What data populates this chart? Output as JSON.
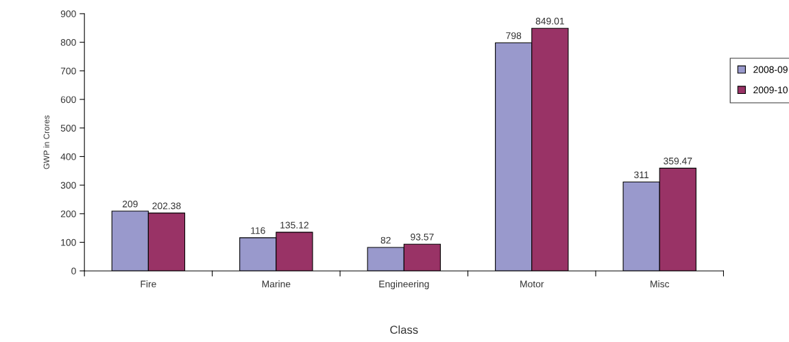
{
  "chart_data": {
    "type": "bar",
    "xlabel": "Class",
    "ylabel": "GWP in Crores",
    "categories": [
      "Fire",
      "Marine",
      "Engineering",
      "Motor",
      "Misc"
    ],
    "series": [
      {
        "name": "2008-09",
        "color": "#9999cc",
        "values": [
          209,
          116,
          82,
          798,
          311
        ]
      },
      {
        "name": "2009-10",
        "color": "#993366",
        "values": [
          202.38,
          135.12,
          93.57,
          849.01,
          359.47
        ]
      }
    ],
    "ylim": [
      0,
      900
    ],
    "yticks": [
      0,
      100,
      200,
      300,
      400,
      500,
      600,
      700,
      800,
      900
    ],
    "data_labels": true,
    "grid": false,
    "legend": "right"
  }
}
